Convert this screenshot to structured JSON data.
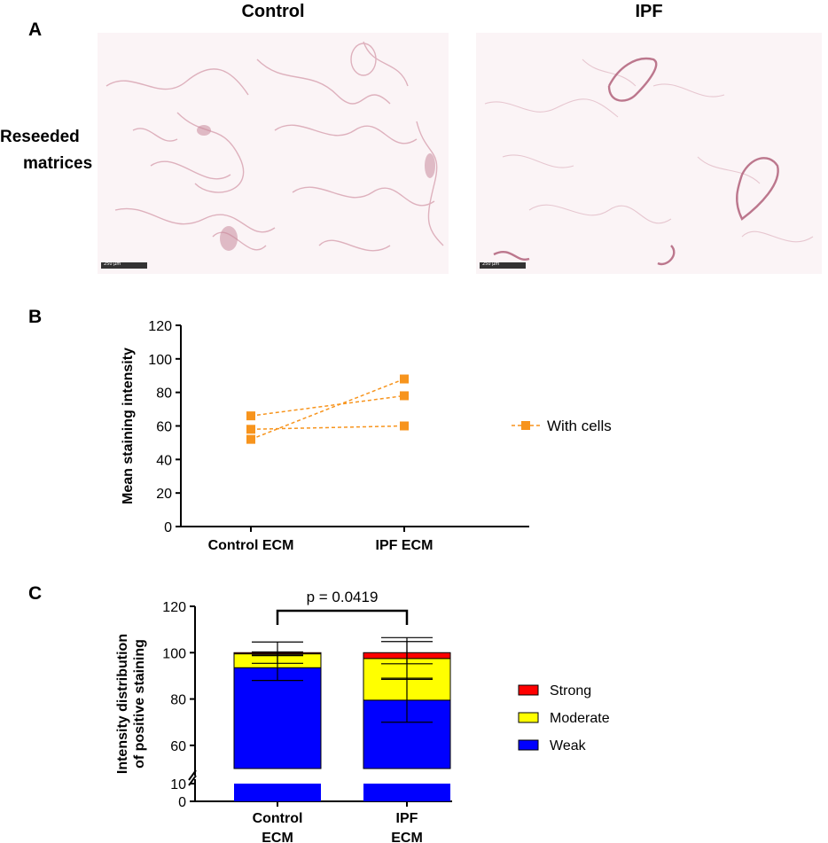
{
  "panel_a": {
    "letter": "A",
    "columns": [
      "Control",
      "IPF"
    ],
    "row_label": [
      "Reseeded",
      "matrices"
    ],
    "scalebar_label": "250 μm"
  },
  "chart_data": [
    {
      "panel": "B",
      "type": "line",
      "categories": [
        "Control ECM",
        "IPF ECM"
      ],
      "series": [
        {
          "name": "With cells",
          "values": [
            66,
            78
          ]
        },
        {
          "name": "With cells",
          "values": [
            58,
            60
          ]
        },
        {
          "name": "With cells",
          "values": [
            52,
            88
          ]
        }
      ],
      "legend": [
        "With cells"
      ],
      "ylabel": "Mean staining intensity",
      "ylim": [
        0,
        120
      ],
      "yticks": [
        0,
        20,
        40,
        60,
        80,
        100,
        120
      ],
      "legend_position": "right",
      "color": "#f7941d",
      "marker": "square",
      "line_style": "dashed"
    },
    {
      "panel": "C",
      "type": "bar",
      "stacked": true,
      "categories": [
        "Control ECM",
        "IPF ECM"
      ],
      "category_lines": [
        [
          "Control",
          "ECM"
        ],
        [
          "IPF",
          "ECM"
        ]
      ],
      "series": [
        {
          "name": "Weak",
          "values": [
            93.5,
            79.5
          ],
          "error": [
            5.5,
            9.5
          ],
          "color": "#0000ff"
        },
        {
          "name": "Moderate",
          "values": [
            6.0,
            18.0
          ],
          "error": [
            0.8,
            9.0
          ],
          "color": "#ffff00"
        },
        {
          "name": "Strong",
          "values": [
            0.5,
            2.5
          ],
          "error": [
            4.6,
            4.8
          ],
          "color": "#ff0000"
        }
      ],
      "legend_order": [
        "Strong",
        "Moderate",
        "Weak"
      ],
      "ylabel_lines": [
        "Intensity distribution",
        "of positive staining"
      ],
      "yticks": [
        0,
        10,
        60,
        80,
        100,
        120
      ],
      "y_axis_break": [
        10,
        50
      ],
      "ylim": [
        0,
        120
      ],
      "annotation": "p = 0.0419",
      "legend_position": "right"
    }
  ],
  "panel_b_letter": "B",
  "panel_c_letter": "C"
}
